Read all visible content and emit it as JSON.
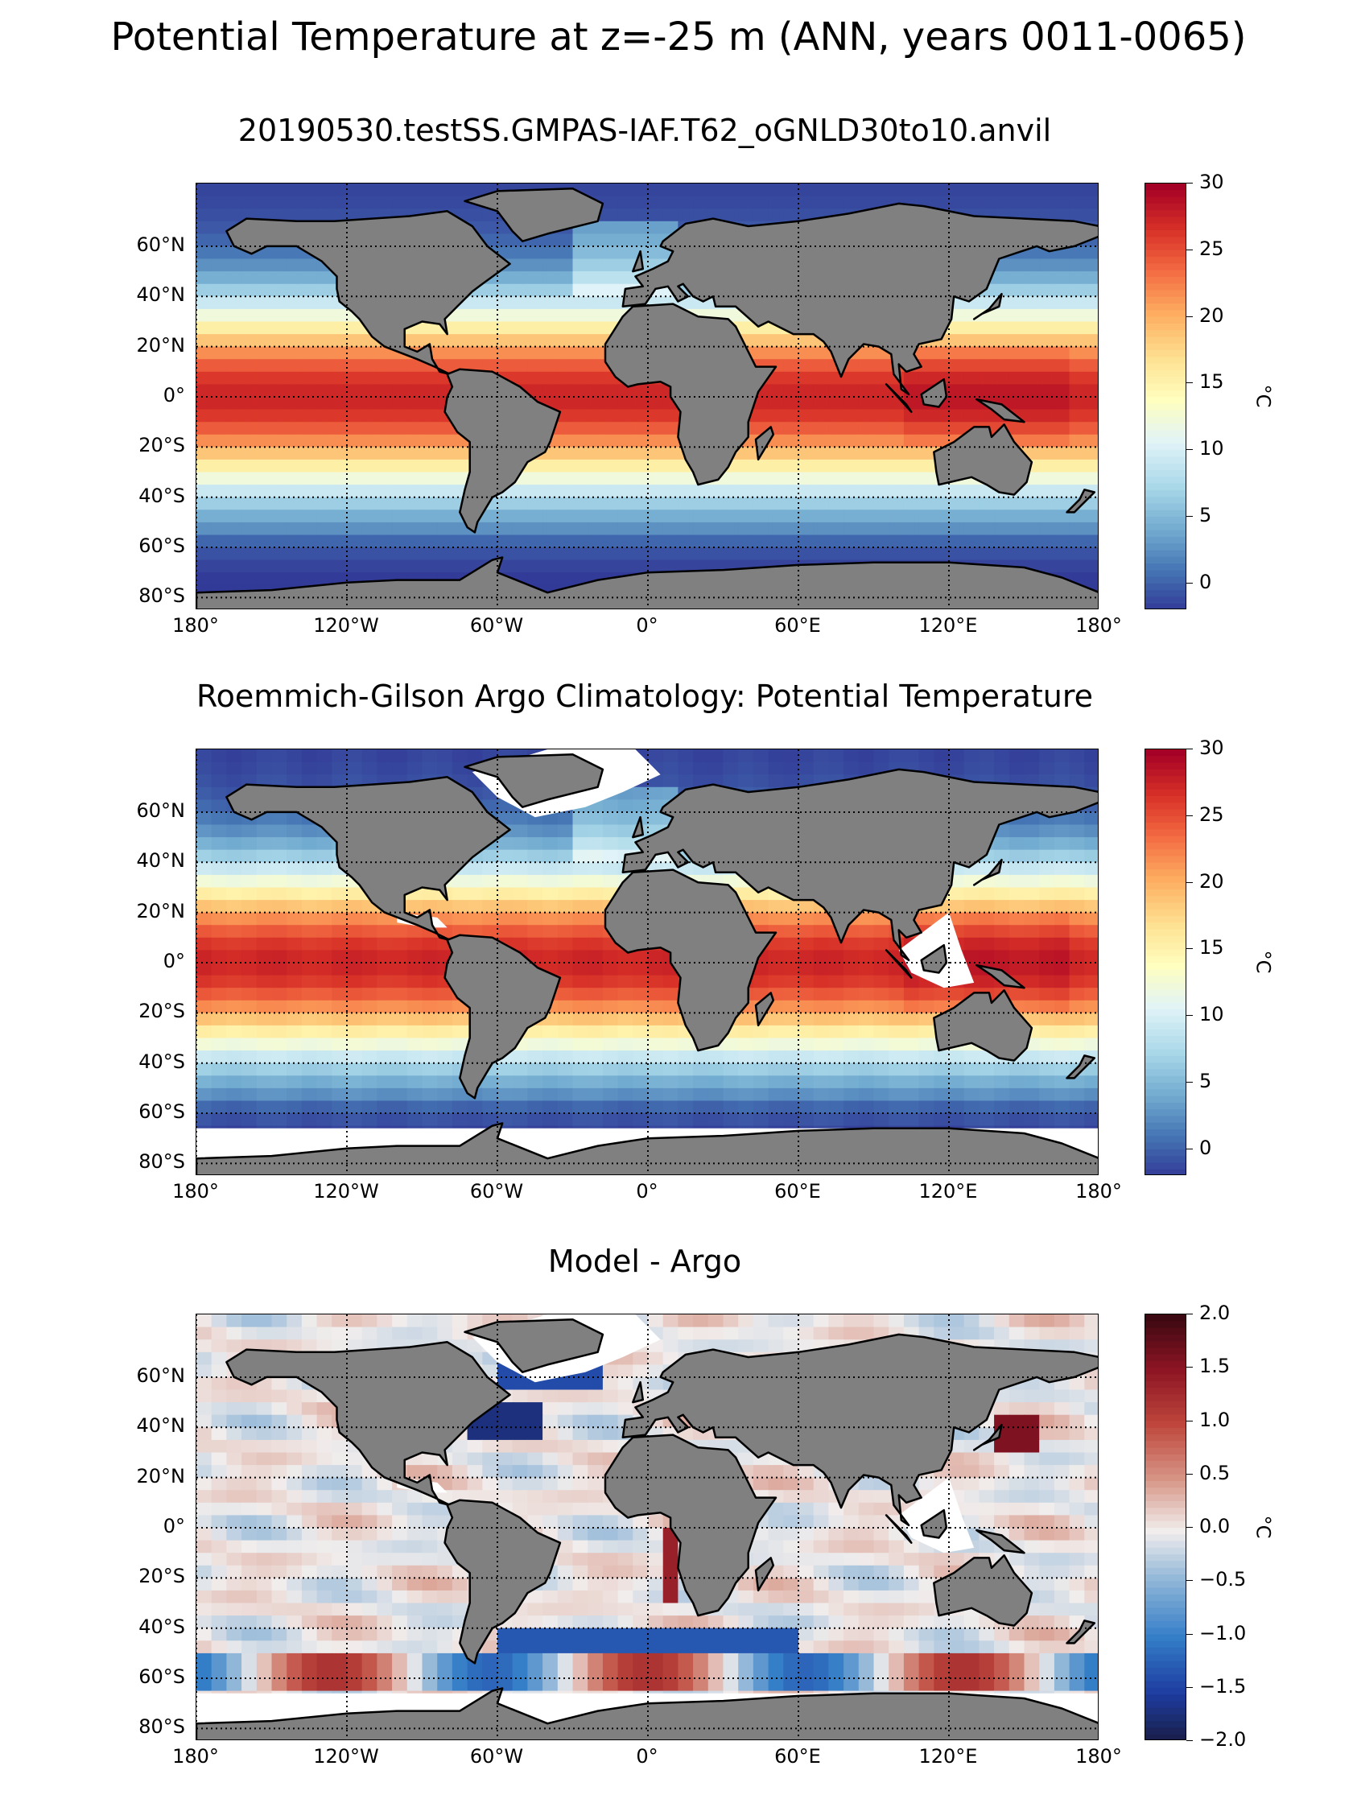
{
  "figure": {
    "suptitle": "Potential Temperature at z=-25 m (ANN, years 0011-0065)"
  },
  "panels": [
    {
      "title": "20190530.testSS.GMPAS-IAF.T62_oGNLD30to10.anvil",
      "colormap": "RdYlBu_r",
      "colorbar_label": "°C",
      "colorbar_ticks": [
        "30",
        "25",
        "20",
        "15",
        "10",
        "5",
        "0"
      ],
      "colorbar_tick_values": [
        30,
        25,
        20,
        15,
        10,
        5,
        0
      ],
      "cmin": -2,
      "cmax": 30
    },
    {
      "title": "Roemmich-Gilson Argo Climatology: Potential Temperature",
      "colormap": "RdYlBu_r",
      "colorbar_label": "°C",
      "colorbar_ticks": [
        "30",
        "25",
        "20",
        "15",
        "10",
        "5",
        "0"
      ],
      "colorbar_tick_values": [
        30,
        25,
        20,
        15,
        10,
        5,
        0
      ],
      "cmin": -2,
      "cmax": 30
    },
    {
      "title": "Model - Argo",
      "colormap": "balance",
      "colorbar_label": "°C",
      "colorbar_ticks": [
        "2.0",
        "1.5",
        "1.0",
        "0.5",
        "0.0",
        "−0.5",
        "−1.0",
        "−1.5",
        "−2.0"
      ],
      "colorbar_tick_values": [
        2.0,
        1.5,
        1.0,
        0.5,
        0.0,
        -0.5,
        -1.0,
        -1.5,
        -2.0
      ],
      "cmin": -2,
      "cmax": 2
    }
  ],
  "axes": {
    "lat_ticks": [
      "60°N",
      "40°N",
      "20°N",
      "0°",
      "20°S",
      "40°S",
      "60°S",
      "80°S"
    ],
    "lat_values": [
      60,
      40,
      20,
      0,
      -20,
      -40,
      -60,
      -80
    ],
    "lon_ticks": [
      "180°",
      "120°W",
      "60°W",
      "0°",
      "60°E",
      "120°E",
      "180°"
    ],
    "lon_values": [
      -180,
      -120,
      -60,
      0,
      60,
      120,
      180
    ],
    "lat_range": [
      -85,
      85
    ],
    "lon_range": [
      -180,
      180
    ],
    "grid": true
  },
  "colors": {
    "land": "#808080",
    "missing": "#ffffff"
  }
}
